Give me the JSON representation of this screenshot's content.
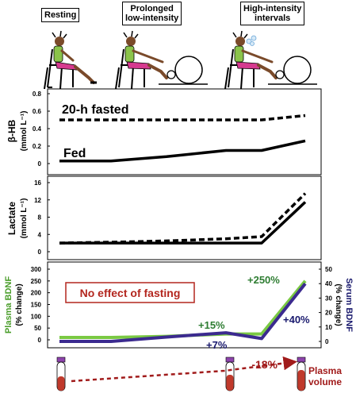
{
  "conditions": [
    "Resting",
    "Prolonged\nlow-intensity",
    "High-intensity\nintervals"
  ],
  "chart_data": [
    {
      "type": "line",
      "ylabel": "β-HB\n(mmol L⁻¹)",
      "yticks": [
        "0.8",
        "0.6",
        "0.4",
        "0.2",
        "0"
      ],
      "ylim": [
        0,
        0.8
      ],
      "x": [
        0,
        1,
        2,
        3,
        4,
        5
      ],
      "series": [
        {
          "name": "20-h fasted",
          "style": "dashed",
          "color": "#000000",
          "values": [
            0.5,
            0.5,
            0.5,
            0.5,
            0.5,
            0.55
          ]
        },
        {
          "name": "Fed",
          "style": "solid",
          "color": "#000000",
          "values": [
            0.03,
            0.03,
            0.08,
            0.15,
            0.15,
            0.26
          ]
        }
      ]
    },
    {
      "type": "line",
      "ylabel": "Lactate\n(mmol L⁻¹)",
      "yticks": [
        "16",
        "12",
        "8",
        "4",
        "0"
      ],
      "ylim": [
        0,
        16
      ],
      "x": [
        0,
        1,
        2,
        3,
        4,
        5
      ],
      "series": [
        {
          "name": "20-h fasted",
          "style": "dashed",
          "color": "#000000",
          "values": [
            2.0,
            2.2,
            2.5,
            3.0,
            3.5,
            13.5
          ]
        },
        {
          "name": "Fed",
          "style": "solid",
          "color": "#000000",
          "values": [
            2.0,
            2.0,
            2.0,
            2.0,
            2.0,
            11.5
          ]
        }
      ]
    },
    {
      "type": "line",
      "ylabel_left": "Plasma BDNF\n(% change)",
      "ylabel_right": "Serum BDNF\n(% change)",
      "yticks_left": [
        "300",
        "250",
        "200",
        "150",
        "100",
        "50",
        "0"
      ],
      "yticks_right": [
        "50",
        "40",
        "30",
        "20",
        "10",
        "0"
      ],
      "ylim_left": [
        0,
        300
      ],
      "ylim_right": [
        0,
        50
      ],
      "x": [
        0,
        1,
        2,
        3,
        4,
        5
      ],
      "annotation": "No effect of fasting",
      "series": [
        {
          "name": "Plasma BDNF",
          "color": "#7ac943",
          "values": [
            10,
            10,
            15,
            25,
            25,
            250
          ]
        },
        {
          "name": "Serum BDNF",
          "color": "#3b2a8f",
          "values": [
            0,
            0,
            3,
            6,
            2,
            40
          ]
        }
      ],
      "labels": [
        {
          "text": "+15%",
          "color": "#2e7d32"
        },
        {
          "text": "+250%",
          "color": "#2e7d32"
        },
        {
          "text": "+7%",
          "color": "#1a1a6e"
        },
        {
          "text": "+40%",
          "color": "#1a1a6e"
        }
      ]
    }
  ],
  "plasma_volume": {
    "label": "Plasma\nvolume",
    "change": "-18%",
    "color": "#a11b1b"
  }
}
